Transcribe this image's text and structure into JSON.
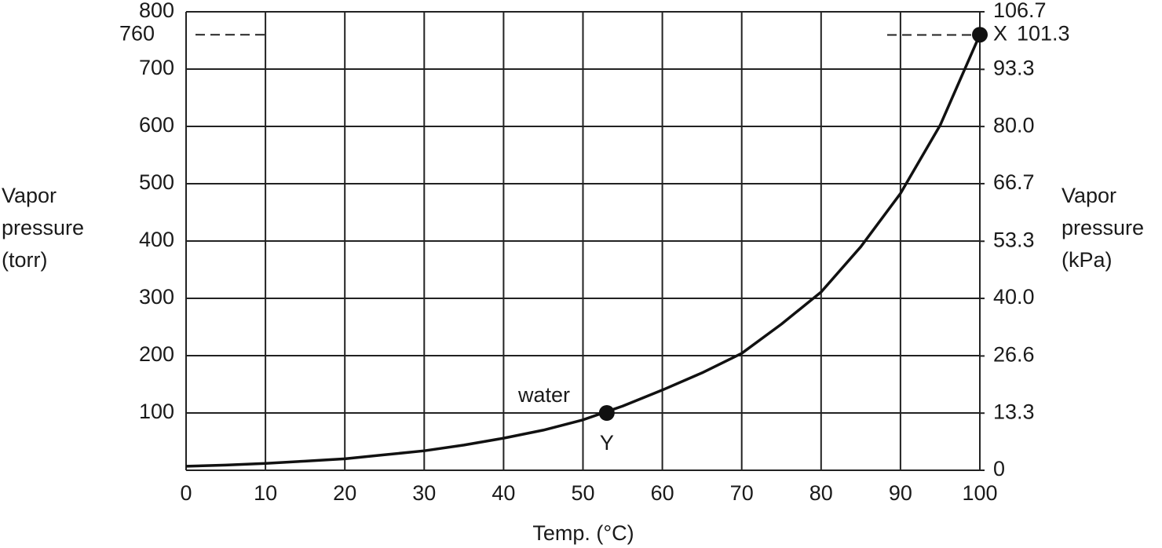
{
  "chart_data": {
    "type": "line",
    "xlabel": "Temp. (°C)",
    "ylabel": [
      "Vapor",
      "pressure",
      "(torr)"
    ],
    "y2label": [
      "Vapor",
      "pressure",
      "(kPa)"
    ],
    "xlim": [
      0,
      100
    ],
    "ylim": [
      0,
      800
    ],
    "y2lim": [
      0,
      106.7
    ],
    "xticks": [
      0,
      10,
      20,
      30,
      40,
      50,
      60,
      70,
      80,
      90,
      100
    ],
    "yticks": [
      100,
      200,
      300,
      400,
      500,
      600,
      700,
      800
    ],
    "y2ticks": [
      0,
      13.3,
      26.6,
      {
        "value": 40,
        "label": "40.0"
      },
      53.3,
      66.7,
      {
        "value": 80,
        "label": "80.0"
      },
      93.3,
      106.7
    ],
    "yref": 760,
    "y2ref": 101.3,
    "grid": true,
    "series": [
      {
        "name": "water",
        "color": "#111111",
        "x": [
          0,
          5,
          10,
          15,
          20,
          25,
          30,
          35,
          40,
          45,
          50,
          55,
          60,
          65,
          70,
          75,
          80,
          85,
          90,
          95,
          100
        ],
        "values": [
          7,
          9,
          12,
          16,
          20,
          27,
          34,
          44,
          56,
          70,
          88,
          112,
          140,
          170,
          204,
          255,
          311,
          390,
          483,
          602,
          760
        ]
      }
    ],
    "points": [
      {
        "label": "X",
        "x": 100,
        "y": 760
      },
      {
        "label": "Y",
        "x": 53,
        "y": 100
      }
    ]
  }
}
